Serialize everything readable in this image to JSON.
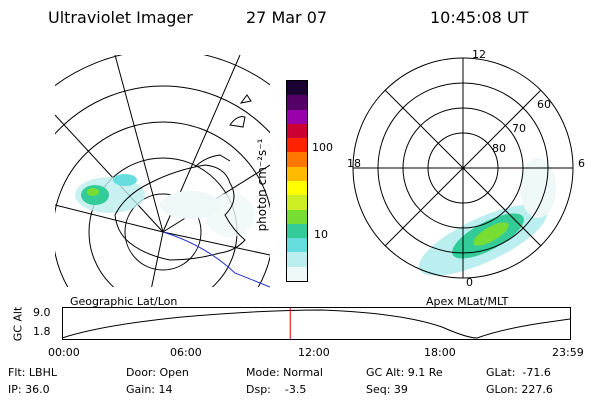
{
  "header": {
    "instrument": "Ultraviolet Imager",
    "date": "27 Mar 07",
    "time": "10:45:08 UT"
  },
  "left_panel": {
    "caption": "Geographic Lat/Lon"
  },
  "right_panel": {
    "caption": "Apex MLat/MLT",
    "mlt_labels": [
      "12",
      "6",
      "0",
      "18"
    ],
    "mlat_labels": [
      "60",
      "70",
      "80"
    ]
  },
  "colorbar": {
    "label": "photon cm⁻²s⁻¹",
    "tick_labels": [
      "100",
      "10"
    ],
    "colors": [
      "#1a0033",
      "#550066",
      "#9900aa",
      "#cc0033",
      "#ff2200",
      "#ff7700",
      "#ffbb00",
      "#ffff00",
      "#ccee22",
      "#77dd33",
      "#33cc99",
      "#66dddd",
      "#bbeeee",
      "#eef8f8"
    ]
  },
  "altitude_plot": {
    "ylabel": "GC Alt",
    "ytick_labels": [
      "9.0",
      "1.8"
    ],
    "xtick_labels": [
      "00:00",
      "06:00",
      "12:00",
      "18:00",
      "23:59"
    ],
    "marker_time": "10:45",
    "marker_color": "#dd0000"
  },
  "info": {
    "filter": "Flt: LBHL",
    "ip": "IP: 36.0",
    "door": "Door: Open",
    "gain": "Gain: 14",
    "mode": "Mode: Normal",
    "dsp": "Dsp:    -3.5",
    "gc_alt": "GC Alt: 9.1 Re",
    "seq": "Seq: 39",
    "glat": "GLat:  -71.6",
    "glon": "GLon: 227.6"
  }
}
